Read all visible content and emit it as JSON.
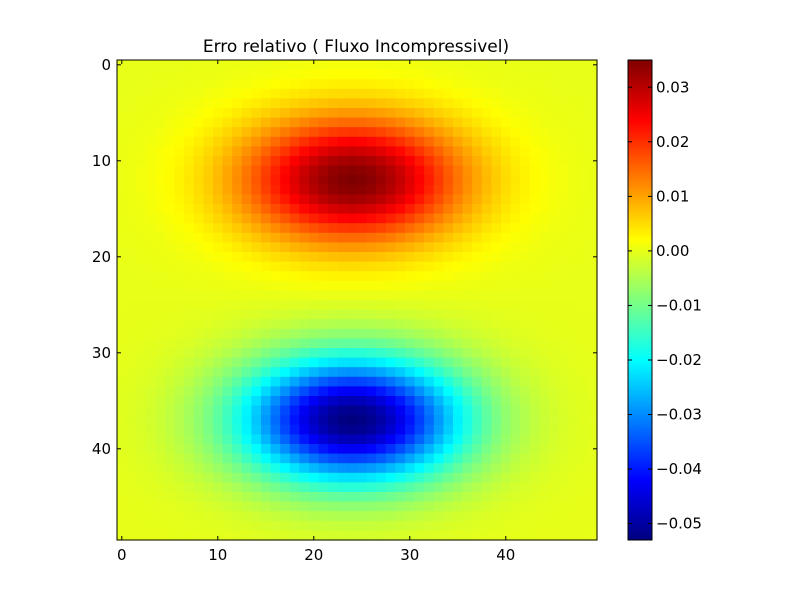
{
  "chart_data": {
    "type": "heatmap",
    "title": "Erro relativo ( Fluxo Incompressivel)",
    "xlabel": "",
    "ylabel": "",
    "grid": false,
    "colormap": "jet",
    "colormap_stops": [
      "#00007f",
      "#0000ff",
      "#007fff",
      "#00ffff",
      "#7fff7f",
      "#ffff00",
      "#ff7f00",
      "#ff0000",
      "#7f0000"
    ],
    "shape": [
      50,
      50
    ],
    "xlim": [
      -0.5,
      49.5
    ],
    "ylim": [
      49.5,
      -0.5
    ],
    "x_ticks": [
      0,
      10,
      20,
      30,
      40
    ],
    "y_ticks": [
      0,
      10,
      20,
      30,
      40
    ],
    "x_tick_labels": [
      "0",
      "10",
      "20",
      "30",
      "40"
    ],
    "y_tick_labels": [
      "0",
      "10",
      "20",
      "30",
      "40"
    ],
    "field": {
      "description_of_pattern": "positive lobe centred near row 12, negative lobe centred near row 37, both centred near column 24",
      "positive_peak": 0.035,
      "negative_peak": -0.053,
      "positive_center": {
        "row": 12,
        "col": 24
      },
      "negative_center": {
        "row": 37,
        "col": 24
      }
    },
    "colorbar": {
      "vmin": -0.053,
      "vmax": 0.035,
      "ticks": [
        0.03,
        0.02,
        0.01,
        0.0,
        -0.01,
        -0.02,
        -0.03,
        -0.04,
        -0.05
      ],
      "tick_labels": [
        "0.03",
        "0.02",
        "0.01",
        "0.00",
        "−0.01",
        "−0.02",
        "−0.03",
        "−0.04",
        "−0.05"
      ]
    }
  }
}
